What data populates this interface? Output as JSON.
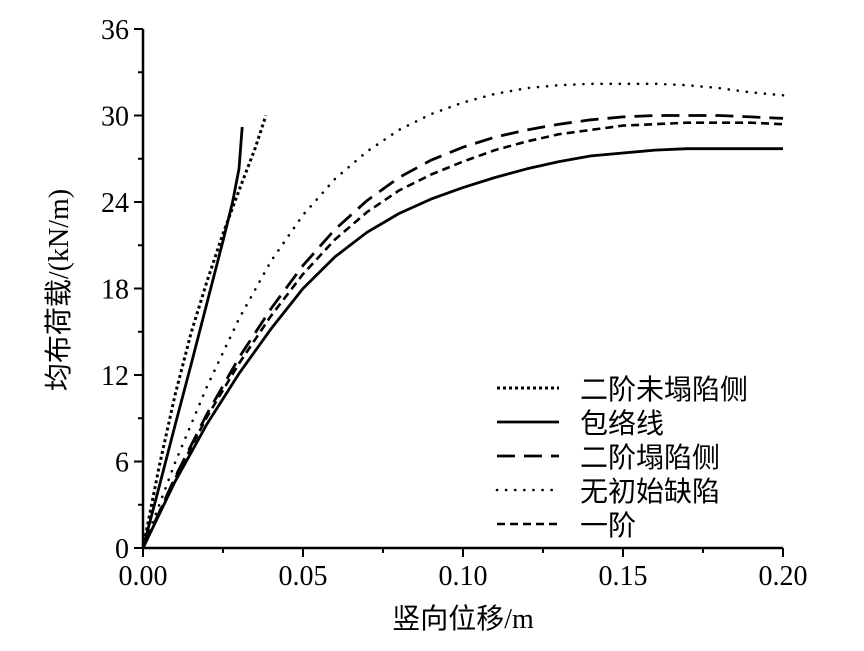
{
  "chart_data": {
    "type": "line",
    "title": "",
    "xlabel": "竖向位移/m",
    "ylabel": "均布荷载/(kN/m)",
    "xlim": [
      0,
      0.2
    ],
    "ylim": [
      0,
      36
    ],
    "xticks": [
      "0.00",
      "0.05",
      "0.10",
      "0.15",
      "0.20"
    ],
    "xtick_values": [
      0,
      0.05,
      0.1,
      0.15,
      0.2
    ],
    "yticks": [
      "0",
      "6",
      "12",
      "18",
      "24",
      "30",
      "36"
    ],
    "ytick_values": [
      0,
      6,
      12,
      18,
      24,
      30,
      36
    ],
    "grid": false,
    "legend_position": "bottom-right",
    "series": [
      {
        "name": "二阶未塌陷侧",
        "style": "dense-dot",
        "segments": [
          [
            [
              0,
              0
            ],
            [
              0.005,
              5.6
            ],
            [
              0.01,
              10.6
            ],
            [
              0.015,
              14.9
            ],
            [
              0.02,
              18.5
            ],
            [
              0.025,
              21.8
            ],
            [
              0.03,
              24.8
            ],
            [
              0.035,
              27.7
            ],
            [
              0.0384,
              30
            ]
          ]
        ]
      },
      {
        "name": "包络线",
        "style": "solid",
        "segments": [
          [
            [
              0,
              0
            ],
            [
              0.005,
              4.2
            ],
            [
              0.01,
              8.5
            ],
            [
              0.015,
              12.7
            ],
            [
              0.02,
              17.0
            ],
            [
              0.025,
              21.3
            ],
            [
              0.028,
              24.0
            ],
            [
              0.03,
              26.3
            ],
            [
              0.031,
              29.2
            ]
          ],
          [
            [
              0,
              0
            ],
            [
              0.01,
              4.6
            ],
            [
              0.02,
              8.6
            ],
            [
              0.03,
              12.1
            ],
            [
              0.04,
              15.2
            ],
            [
              0.05,
              18.0
            ],
            [
              0.06,
              20.2
            ],
            [
              0.07,
              21.9
            ],
            [
              0.08,
              23.2
            ],
            [
              0.09,
              24.2
            ],
            [
              0.1,
              25.0
            ],
            [
              0.11,
              25.7
            ],
            [
              0.12,
              26.3
            ],
            [
              0.13,
              26.8
            ],
            [
              0.14,
              27.2
            ],
            [
              0.15,
              27.4
            ],
            [
              0.16,
              27.6
            ],
            [
              0.17,
              27.7
            ],
            [
              0.18,
              27.7
            ],
            [
              0.19,
              27.7
            ],
            [
              0.2,
              27.7
            ]
          ]
        ]
      },
      {
        "name": "二阶塌陷侧",
        "style": "long-dash",
        "segments": [
          [
            [
              0,
              0
            ],
            [
              0.01,
              4.9
            ],
            [
              0.02,
              9.3
            ],
            [
              0.03,
              13.2
            ],
            [
              0.04,
              16.6
            ],
            [
              0.05,
              19.6
            ],
            [
              0.06,
              22.1
            ],
            [
              0.07,
              24.1
            ],
            [
              0.08,
              25.7
            ],
            [
              0.09,
              26.9
            ],
            [
              0.1,
              27.8
            ],
            [
              0.11,
              28.5
            ],
            [
              0.12,
              29.0
            ],
            [
              0.13,
              29.4
            ],
            [
              0.14,
              29.7
            ],
            [
              0.15,
              29.9
            ],
            [
              0.16,
              30.0
            ],
            [
              0.17,
              30.0
            ],
            [
              0.18,
              30.0
            ],
            [
              0.19,
              29.9
            ],
            [
              0.2,
              29.8
            ]
          ]
        ]
      },
      {
        "name": "无初始缺陷",
        "style": "sparse-dot",
        "segments": [
          [
            [
              0,
              0
            ],
            [
              0.01,
              5.9
            ],
            [
              0.02,
              11.2
            ],
            [
              0.03,
              15.9
            ],
            [
              0.04,
              19.9
            ],
            [
              0.05,
              23.1
            ],
            [
              0.06,
              25.6
            ],
            [
              0.07,
              27.5
            ],
            [
              0.08,
              29.0
            ],
            [
              0.09,
              30.1
            ],
            [
              0.1,
              30.9
            ],
            [
              0.11,
              31.5
            ],
            [
              0.12,
              31.9
            ],
            [
              0.13,
              32.1
            ],
            [
              0.14,
              32.2
            ],
            [
              0.15,
              32.2
            ],
            [
              0.16,
              32.2
            ],
            [
              0.17,
              32.1
            ],
            [
              0.18,
              31.9
            ],
            [
              0.19,
              31.6
            ],
            [
              0.2,
              31.4
            ]
          ]
        ]
      },
      {
        "name": "一阶",
        "style": "short-dash",
        "segments": [
          [
            [
              0,
              0
            ],
            [
              0.01,
              4.8
            ],
            [
              0.02,
              9.1
            ],
            [
              0.03,
              12.8
            ],
            [
              0.04,
              16.1
            ],
            [
              0.05,
              19.0
            ],
            [
              0.06,
              21.4
            ],
            [
              0.07,
              23.3
            ],
            [
              0.08,
              24.8
            ],
            [
              0.09,
              25.9
            ],
            [
              0.1,
              26.8
            ],
            [
              0.11,
              27.6
            ],
            [
              0.12,
              28.2
            ],
            [
              0.13,
              28.7
            ],
            [
              0.14,
              29.0
            ],
            [
              0.15,
              29.3
            ],
            [
              0.16,
              29.4
            ],
            [
              0.17,
              29.5
            ],
            [
              0.18,
              29.5
            ],
            [
              0.19,
              29.5
            ],
            [
              0.2,
              29.4
            ]
          ]
        ]
      }
    ]
  }
}
